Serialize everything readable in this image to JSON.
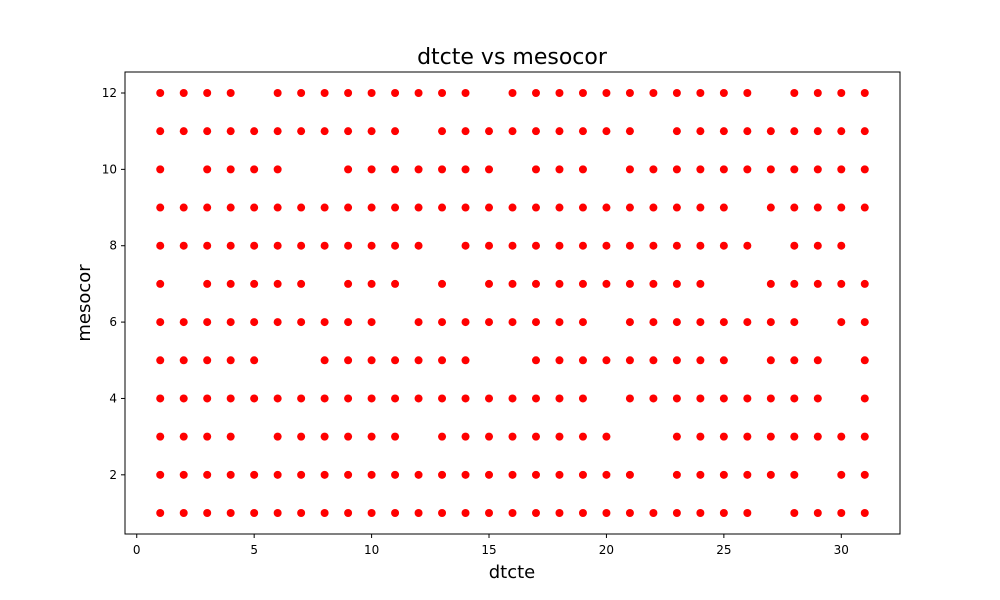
{
  "chart_data": {
    "type": "scatter",
    "title": "dtcte vs mesocor",
    "xlabel": "dtcte",
    "ylabel": "mesocor",
    "xlim": [
      -0.5,
      32.5
    ],
    "ylim": [
      0.45,
      12.55
    ],
    "xticks": [
      0,
      5,
      10,
      15,
      20,
      25,
      30
    ],
    "yticks": [
      2,
      4,
      6,
      8,
      10,
      12
    ],
    "grid": false,
    "marker_color": "#ff0000",
    "rows": [
      {
        "y": 12,
        "x": [
          1,
          2,
          3,
          4,
          6,
          7,
          8,
          9,
          10,
          11,
          12,
          13,
          14,
          16,
          17,
          18,
          19,
          20,
          21,
          22,
          23,
          24,
          25,
          26,
          28,
          29,
          30,
          31
        ]
      },
      {
        "y": 11,
        "x": [
          1,
          2,
          3,
          4,
          5,
          6,
          7,
          8,
          9,
          10,
          11,
          13,
          14,
          15,
          16,
          17,
          18,
          19,
          20,
          21,
          23,
          24,
          25,
          26,
          27,
          28,
          29,
          30,
          31
        ]
      },
      {
        "y": 10,
        "x": [
          1,
          3,
          4,
          5,
          6,
          9,
          10,
          11,
          12,
          13,
          14,
          15,
          17,
          18,
          19,
          21,
          22,
          23,
          24,
          25,
          26,
          27,
          28,
          29,
          30,
          31
        ]
      },
      {
        "y": 9,
        "x": [
          1,
          2,
          3,
          4,
          5,
          6,
          7,
          8,
          9,
          10,
          11,
          12,
          13,
          14,
          15,
          16,
          17,
          18,
          19,
          20,
          21,
          22,
          23,
          24,
          25,
          27,
          28,
          29,
          30,
          31
        ]
      },
      {
        "y": 8,
        "x": [
          1,
          2,
          3,
          4,
          5,
          6,
          7,
          8,
          9,
          10,
          11,
          12,
          14,
          15,
          16,
          17,
          18,
          19,
          20,
          21,
          22,
          23,
          24,
          25,
          26,
          28,
          29,
          30
        ]
      },
      {
        "y": 7,
        "x": [
          1,
          3,
          4,
          5,
          6,
          7,
          9,
          10,
          11,
          13,
          15,
          16,
          17,
          18,
          19,
          20,
          21,
          22,
          23,
          24,
          27,
          28,
          29,
          30,
          31
        ]
      },
      {
        "y": 6,
        "x": [
          1,
          2,
          3,
          4,
          5,
          6,
          7,
          8,
          9,
          10,
          12,
          13,
          14,
          15,
          16,
          17,
          18,
          19,
          21,
          22,
          23,
          24,
          25,
          26,
          27,
          28,
          30,
          31
        ]
      },
      {
        "y": 5,
        "x": [
          1,
          2,
          3,
          4,
          5,
          8,
          9,
          10,
          11,
          12,
          13,
          14,
          17,
          18,
          19,
          20,
          21,
          22,
          23,
          24,
          25,
          27,
          28,
          29,
          31
        ]
      },
      {
        "y": 4,
        "x": [
          1,
          2,
          3,
          4,
          5,
          6,
          7,
          8,
          9,
          10,
          11,
          12,
          13,
          14,
          15,
          16,
          17,
          18,
          19,
          21,
          22,
          23,
          24,
          25,
          26,
          27,
          28,
          29,
          31
        ]
      },
      {
        "y": 3,
        "x": [
          1,
          2,
          3,
          4,
          6,
          7,
          8,
          9,
          10,
          11,
          13,
          14,
          15,
          16,
          17,
          18,
          19,
          20,
          23,
          24,
          25,
          26,
          27,
          28,
          29,
          30,
          31
        ]
      },
      {
        "y": 2,
        "x": [
          1,
          2,
          3,
          4,
          5,
          6,
          7,
          8,
          9,
          10,
          11,
          12,
          13,
          14,
          15,
          16,
          17,
          18,
          19,
          20,
          21,
          23,
          24,
          25,
          26,
          27,
          28,
          30,
          31
        ]
      },
      {
        "y": 1,
        "x": [
          1,
          2,
          3,
          4,
          5,
          6,
          7,
          8,
          9,
          10,
          11,
          12,
          13,
          14,
          15,
          16,
          17,
          18,
          19,
          20,
          21,
          22,
          23,
          24,
          25,
          26,
          28,
          29,
          30,
          31
        ]
      }
    ]
  }
}
